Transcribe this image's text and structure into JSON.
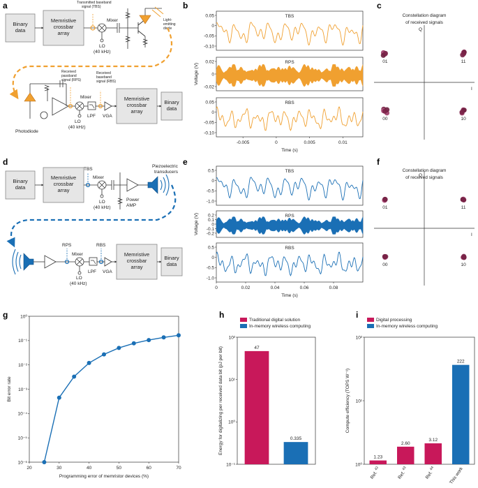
{
  "panel_labels": {
    "a": "a",
    "b": "b",
    "c": "c",
    "d": "d",
    "e": "e",
    "f": "f",
    "g": "g",
    "h": "h",
    "i": "i"
  },
  "colors": {
    "orange": "#f0a030",
    "blue": "#1a6fb5",
    "crimson": "#c8185a",
    "dot": "#8a2a52",
    "gray": "#e6e6e6"
  },
  "diagram_a": {
    "binary_in": "Binary\ndata",
    "crossbar": "Memristive\ncrossbar\narray",
    "mixer": "Mixer",
    "lo": "LO\n(40 kHz)",
    "tbs_note": "Transmitted baseband\nsignal (TBS)",
    "led_note": "Light-\nemitting\ndiode",
    "rps_note": "Received\npassband\nsignal (RPS)",
    "rbs_note": "Received\nbaseband\nsignal (RBS)",
    "photodiode": "Photodiode",
    "lpf": "LPF",
    "vga": "VGA",
    "crossbar2": "Memristive\ncrossbar\narray",
    "binary_out": "Binary\ndata"
  },
  "diagram_d": {
    "binary_in": "Binary\ndata",
    "crossbar": "Memristive\ncrossbar\narray",
    "tbs": "TBS",
    "mixer": "Mixer",
    "lo": "LO\n(40 kHz)",
    "power_amp": "Power\nAMP",
    "piezo": "Piezoelectric\ntransducers",
    "rps": "RPS",
    "rbs": "RBS",
    "mixer2": "Mixer",
    "lo2": "LO\n(40 kHz)",
    "lpf": "LPF",
    "vga": "VGA",
    "crossbar2": "Memristive\ncrossbar\narray",
    "binary_out": "Binary\ndata"
  },
  "chart_data": [
    {
      "panel": "b",
      "type": "line",
      "ylabel": "Voltage (V)",
      "xlabel": "Time (s)",
      "xlim": [
        -0.009,
        0.013
      ],
      "x_ticks": [
        "-0.005",
        "0",
        "0.005",
        "0.01"
      ],
      "series": [
        {
          "name": "TBS",
          "ylim": [
            -0.1,
            0.05
          ],
          "y_ticks": [
            "0.05",
            "0",
            "-0.05",
            "-0.10"
          ]
        },
        {
          "name": "RPS",
          "ylim": [
            -0.02,
            0.02
          ],
          "y_ticks": [
            "0.02",
            "0",
            "-0.02"
          ]
        },
        {
          "name": "RBS",
          "ylim": [
            -0.1,
            0.05
          ],
          "y_ticks": [
            "0.05",
            "0",
            "-0.05",
            "-0.10"
          ]
        }
      ]
    },
    {
      "panel": "c",
      "type": "scatter",
      "title": "Constellation diagram\nof received signals",
      "xlabel": "I",
      "ylabel": "Q",
      "quadrants": [
        "01",
        "11",
        "00",
        "10"
      ]
    },
    {
      "panel": "e",
      "type": "line",
      "ylabel": "Voltage (V)",
      "xlabel": "Time (s)",
      "xlim": [
        0,
        0.1
      ],
      "x_ticks": [
        "0",
        "0.02",
        "0.04",
        "0.06",
        "0.08"
      ],
      "series": [
        {
          "name": "TBS",
          "ylim": [
            -1.0,
            0.5
          ],
          "y_ticks": [
            "0.5",
            "0",
            "-0.5",
            "-1.0"
          ]
        },
        {
          "name": "RPS",
          "ylim": [
            -0.2,
            0.2
          ],
          "y_ticks": [
            "0.2",
            "0.1",
            "0",
            "-0.1",
            "-0.2"
          ]
        },
        {
          "name": "RBS",
          "ylim": [
            -1.0,
            0.5
          ],
          "y_ticks": [
            "0.5",
            "0",
            "-0.5",
            "-1.0"
          ]
        }
      ]
    },
    {
      "panel": "f",
      "type": "scatter",
      "title": "Constellation diagram\nof received signals",
      "xlabel": "I",
      "ylabel": "Q",
      "quadrants": [
        "01",
        "11",
        "00",
        "10"
      ]
    },
    {
      "panel": "g",
      "type": "line",
      "xlabel": "Programming error of memristor devices (%)",
      "ylabel": "Bit error rate",
      "x": [
        25,
        30,
        35,
        40,
        45,
        50,
        55,
        60,
        65,
        70
      ],
      "y": [
        1e-06,
        0.00045,
        0.0033,
        0.012,
        0.027,
        0.05,
        0.077,
        0.105,
        0.135,
        0.165
      ],
      "xlim": [
        20,
        70
      ],
      "x_ticks": [
        "20",
        "30",
        "40",
        "50",
        "60",
        "70"
      ],
      "ylim": [
        1e-06,
        1
      ],
      "y_ticks": [
        "10⁰",
        "10⁻¹",
        "10⁻²",
        "10⁻³",
        "10⁻⁴",
        "10⁻⁵",
        "10⁻⁶"
      ],
      "yscale": "log"
    },
    {
      "panel": "h",
      "type": "bar",
      "ylabel": "Energy for digitalizing per received data bit (pJ per bit)",
      "categories": [
        "Traditional digital solution",
        "In-memory wireless computing"
      ],
      "values": [
        47,
        0.335
      ],
      "value_labels": [
        "47",
        "0.335"
      ],
      "legend": [
        "Traditional digital solution",
        "In-memory wireless computing"
      ],
      "ylim": [
        0.1,
        100
      ],
      "y_ticks": [
        "10²",
        "10¹",
        "10⁰",
        "10⁻¹"
      ],
      "yscale": "log"
    },
    {
      "panel": "i",
      "type": "bar",
      "ylabel": "Compute efficiency (TOPS W⁻¹)",
      "categories": [
        "Ref. 42",
        "Ref. 43",
        "Ref. 44",
        "This work"
      ],
      "category_labels": [
        "Ref.",
        "Ref.",
        "Ref.",
        "This work"
      ],
      "category_sups": [
        "42",
        "43",
        "44",
        ""
      ],
      "values": [
        1.23,
        2.6,
        3.12,
        222
      ],
      "value_labels": [
        "1.23",
        "2.60",
        "3.12",
        "222"
      ],
      "legend": [
        "Digital processing",
        "In-memory wireless computing"
      ],
      "ylim": [
        1,
        1000
      ],
      "y_ticks": [
        "10²",
        "10¹",
        "10⁰"
      ],
      "yscale": "log"
    }
  ]
}
